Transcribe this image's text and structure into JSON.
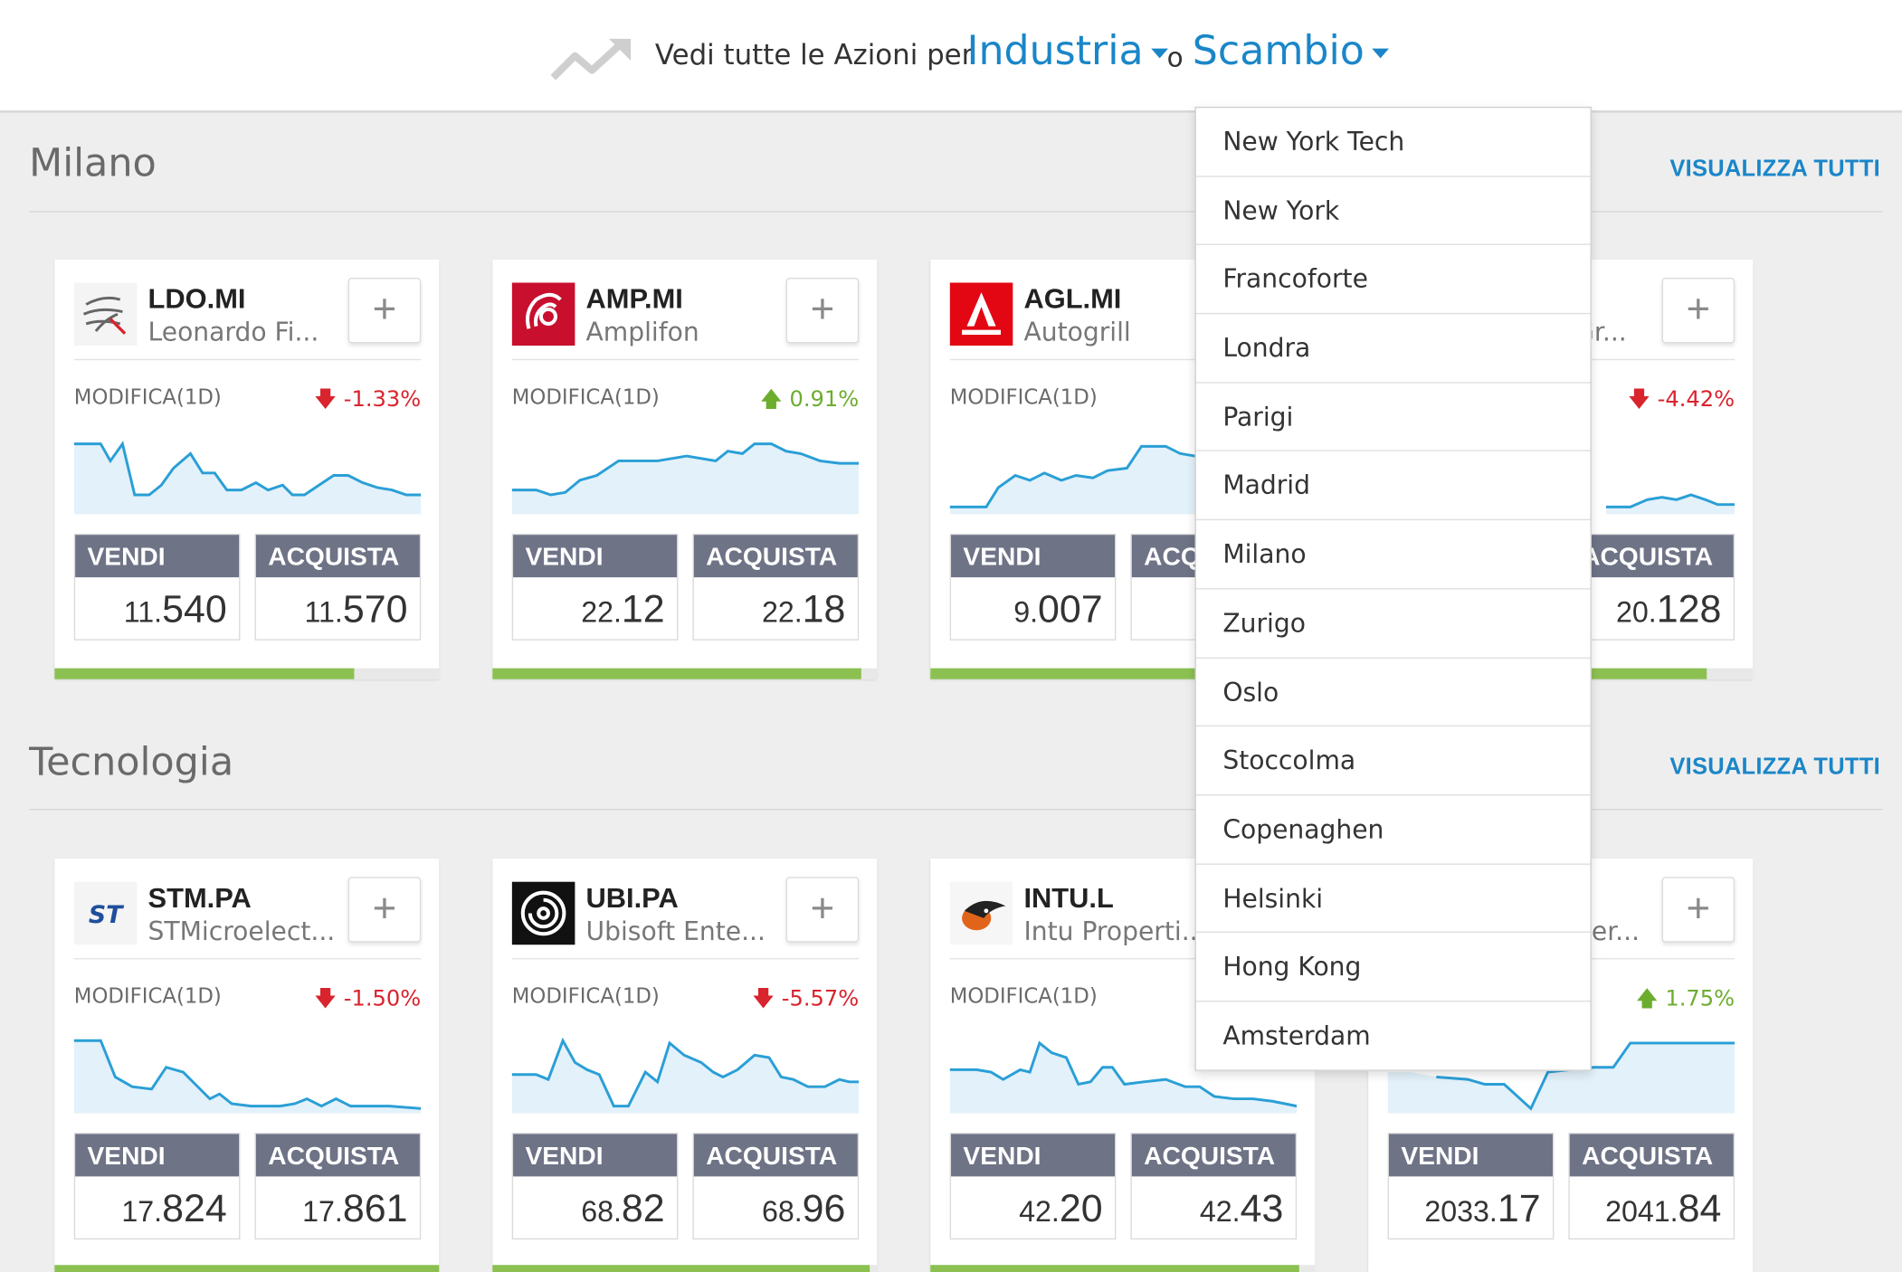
{
  "header": {
    "lead_text": "Vedi tutte le Azioni per",
    "industry_label": "Industria",
    "or_text": "o",
    "exchange_label": "Scambio"
  },
  "sections": [
    {
      "title": "Milano",
      "view_all": "VISUALIZZA TUTTI",
      "cards": [
        {
          "symbol": "LDO.MI",
          "name": "Leonardo Fi...",
          "change_label": "MODIFICA(1D)",
          "change": "-1.33%",
          "sell_label": "VENDI",
          "sell_int": "11.",
          "sell_dec": "540",
          "buy_label": "ACQUISTA",
          "buy_int": "11.",
          "buy_dec": "570",
          "bar_fraction": 0.78
        },
        {
          "symbol": "AMP.MI",
          "name": "Amplifon",
          "change_label": "MODIFICA(1D)",
          "change": "0.91%",
          "sell_label": "VENDI",
          "sell_int": "22.",
          "sell_dec": "12",
          "buy_label": "ACQUISTA",
          "buy_int": "22.",
          "buy_dec": "18",
          "bar_fraction": 0.96
        },
        {
          "symbol": "AGL.MI",
          "name": "Autogrill",
          "change_label": "MODIFICA(1D)",
          "change": "",
          "sell_label": "VENDI",
          "sell_int": "9.",
          "sell_dec": "007",
          "buy_label": "ACQ",
          "buy_int": "",
          "buy_dec": "",
          "bar_fraction": 0.96
        },
        {
          "symbol": "",
          "name": "Gr...",
          "change_label": "",
          "change": "-4.42%",
          "sell_label": "",
          "sell_int": "",
          "sell_dec": "",
          "buy_label": "ACQUISTA",
          "buy_int": "20.",
          "buy_dec": "128",
          "bar_fraction": 0.88
        }
      ]
    },
    {
      "title": "Tecnologia",
      "view_all": "VISUALIZZA TUTTI",
      "cards": [
        {
          "symbol": "STM.PA",
          "name": "STMicroelect...",
          "change_label": "MODIFICA(1D)",
          "change": "-1.50%",
          "sell_label": "VENDI",
          "sell_int": "17.",
          "sell_dec": "824",
          "buy_label": "ACQUISTA",
          "buy_int": "17.",
          "buy_dec": "861"
        },
        {
          "symbol": "UBI.PA",
          "name": "Ubisoft Ente...",
          "change_label": "MODIFICA(1D)",
          "change": "-5.57%",
          "sell_label": "VENDI",
          "sell_int": "68.",
          "sell_dec": "82",
          "buy_label": "ACQUISTA",
          "buy_int": "68.",
          "buy_dec": "96"
        },
        {
          "symbol": "INTU.L",
          "name": "Intu Properti...",
          "change_label": "MODIFICA(1D)",
          "change": "",
          "sell_label": "VENDI",
          "sell_int": "42.",
          "sell_dec": "20",
          "buy_label": "ACQUISTA",
          "buy_int": "42.",
          "buy_dec": "43"
        },
        {
          "symbol": "",
          "name": "er...",
          "change_label": "",
          "change": "1.75%",
          "sell_label": "VENDI",
          "sell_int": "2033.",
          "sell_dec": "17",
          "buy_label": "ACQUISTA",
          "buy_int": "2041.",
          "buy_dec": "84"
        }
      ]
    }
  ],
  "exchange_menu": [
    "New York Tech",
    "New York",
    "Francoforte",
    "Londra",
    "Parigi",
    "Madrid",
    "Milano",
    "Zurigo",
    "Oslo",
    "Stoccolma",
    "Copenaghen",
    "Helsinki",
    "Hong Kong",
    "Amsterdam"
  ],
  "colors": {
    "accent": "#1a86c8",
    "down": "#d9232d",
    "up": "#6cad2e",
    "trade_label": "#6e7386",
    "bar": "#8cc152"
  }
}
